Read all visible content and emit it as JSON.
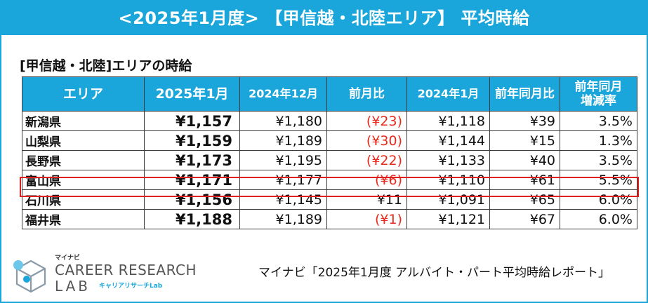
{
  "banner": {
    "title": "<2025年1月度> 【甲信越・北陸エリア】 平均時給"
  },
  "section": {
    "title": "[甲信越・北陸]エリアの時給"
  },
  "table": {
    "headers": [
      "エリア",
      "2025年1月",
      "2024年12月",
      "前月比",
      "2024年1月",
      "前年同月比",
      "前年同月\n増減率"
    ],
    "header_last_line1": "前年同月",
    "header_last_line2": "増減率",
    "rows": [
      {
        "area": "新潟県",
        "jan2025": "¥1,157",
        "dec2024": "¥1,180",
        "mom": "(¥23)",
        "mom_negative": true,
        "jan2024": "¥1,118",
        "yoy": "¥39",
        "yoy_rate": "3.5%"
      },
      {
        "area": "山梨県",
        "jan2025": "¥1,159",
        "dec2024": "¥1,189",
        "mom": "(¥30)",
        "mom_negative": true,
        "jan2024": "¥1,144",
        "yoy": "¥15",
        "yoy_rate": "1.3%"
      },
      {
        "area": "長野県",
        "jan2025": "¥1,173",
        "dec2024": "¥1,195",
        "mom": "(¥22)",
        "mom_negative": true,
        "jan2024": "¥1,133",
        "yoy": "¥40",
        "yoy_rate": "3.5%"
      },
      {
        "area": "富山県",
        "jan2025": "¥1,171",
        "dec2024": "¥1,177",
        "mom": "(¥6)",
        "mom_negative": true,
        "jan2024": "¥1,110",
        "yoy": "¥61",
        "yoy_rate": "5.5%"
      },
      {
        "area": "石川県",
        "jan2025": "¥1,156",
        "dec2024": "¥1,145",
        "mom": "¥11",
        "mom_negative": false,
        "jan2024": "¥1,091",
        "yoy": "¥65",
        "yoy_rate": "6.0%"
      },
      {
        "area": "福井県",
        "jan2025": "¥1,188",
        "dec2024": "¥1,189",
        "mom": "(¥1)",
        "mom_negative": true,
        "jan2024": "¥1,121",
        "yoy": "¥67",
        "yoy_rate": "6.0%"
      }
    ],
    "highlighted_area": "富山県"
  },
  "logo": {
    "sub": "マイナビ",
    "main": "CAREER RESEARCH",
    "lab": "LAB",
    "kana": "キャリアリサーチLab"
  },
  "source": {
    "text": "マイナビ「2025年1月度 アルバイト・パート平均時給レポート」"
  },
  "colors": {
    "accent": "#1aa6da",
    "negative": "#e8291c",
    "highlight_border": "#e02020"
  }
}
